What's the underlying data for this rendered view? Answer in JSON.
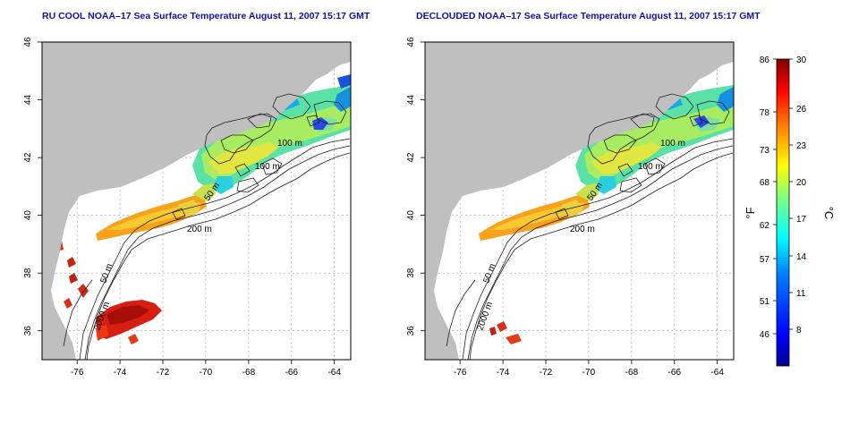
{
  "left_panel": {
    "title": "RU COOL NOAA–17 Sea Surface Temperature August 11, 2007 15:17 GMT",
    "contour_labels": [
      "100 m",
      "100 m",
      "50 m",
      "200 m",
      "50 m",
      "2000 m"
    ]
  },
  "right_panel": {
    "title": "DECLOUDED NOAA–17 Sea Surface Temperature August 11, 2007 15:17 GMT",
    "contour_labels": [
      "100 m",
      "100 m",
      "50 m",
      "200 m",
      "50 m",
      "2000 m"
    ]
  },
  "axes": {
    "lon_ticks": [
      "-76",
      "-74",
      "-72",
      "-70",
      "-68",
      "-66",
      "-64"
    ],
    "lat_ticks": [
      "36",
      "38",
      "40",
      "42",
      "44",
      "46"
    ],
    "lon_range": [
      -77.3,
      -62.9
    ],
    "lat_range": [
      35,
      46
    ]
  },
  "colorbar": {
    "f_ticks": [
      "86",
      "78",
      "73",
      "68",
      "62",
      "57",
      "51",
      "46"
    ],
    "c_ticks": [
      "30",
      "26",
      "23",
      "20",
      "17",
      "14",
      "11",
      "8"
    ],
    "f_label": "°F",
    "c_label": "°C",
    "c_range": [
      5,
      30
    ],
    "colors": [
      "#00008f",
      "#0000ff",
      "#0080ff",
      "#00ffff",
      "#80ff80",
      "#ffff00",
      "#ff8000",
      "#ff0000",
      "#800000"
    ]
  },
  "colors": {
    "land": "#bfbfbf",
    "title": "#1010a8",
    "contour": "#202020"
  }
}
